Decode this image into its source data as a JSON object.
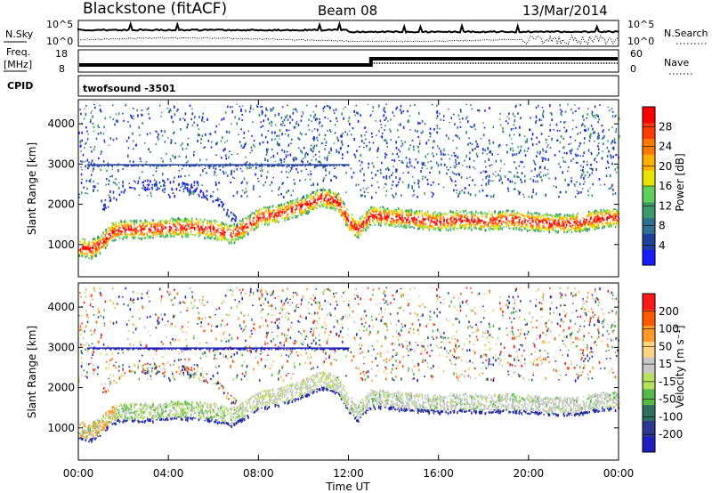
{
  "header": {
    "title": "Blackstone (fitACF)",
    "beam": "Beam 08",
    "date": "13/Mar/2014"
  },
  "noise_panel": {
    "left_label": "N.Sky",
    "right_label": "N.Search",
    "left_ticks": [
      "10^5",
      "10^0"
    ],
    "right_ticks": [
      "10^5",
      "10^0"
    ]
  },
  "freq_panel": {
    "left_label_line1": "Freq.",
    "left_label_line2": "[MHz]",
    "right_label": "Nave",
    "left_ticks": [
      "18",
      "8"
    ],
    "right_ticks": [
      "60",
      "0"
    ]
  },
  "cpid": {
    "label": "CPID",
    "value": "twofsound -3501"
  },
  "colors": {
    "power_scale": [
      "#1a1aff",
      "#1e3f9e",
      "#2f6f8f",
      "#3e9a6a",
      "#5fd15b",
      "#e6e600",
      "#ffb000",
      "#ff7a00",
      "#ff3c00",
      "#ff0000"
    ],
    "velocity_scale": [
      "#1f1fbf",
      "#2b3a8f",
      "#2f6f5f",
      "#58b84a",
      "#b8e060",
      "#c8c8c8",
      "#ffd27f",
      "#ff9a2a",
      "#ff5a00",
      "#ff1a1a"
    ]
  },
  "chart_data": [
    {
      "type": "heatmap",
      "name": "power",
      "xlabel": "",
      "ylabel": "Slant Range [km]",
      "xlim": [
        0,
        24
      ],
      "ylim": [
        200,
        4600
      ],
      "yticks": [
        1000,
        2000,
        3000,
        4000
      ],
      "colorbar": {
        "label": "Power [dB]",
        "ticks": [
          "28",
          "24",
          "20",
          "16",
          "12",
          "8",
          "4"
        ],
        "range": [
          0,
          32
        ]
      },
      "main_band": [
        [
          0.0,
          950
        ],
        [
          0.5,
          900
        ],
        [
          1.0,
          1050
        ],
        [
          1.5,
          1350
        ],
        [
          2.0,
          1400
        ],
        [
          3.0,
          1400
        ],
        [
          4.0,
          1450
        ],
        [
          5.0,
          1450
        ],
        [
          6.0,
          1400
        ],
        [
          6.8,
          1280
        ],
        [
          7.5,
          1500
        ],
        [
          8.0,
          1700
        ],
        [
          9.0,
          1800
        ],
        [
          10.0,
          2000
        ],
        [
          10.8,
          2200
        ],
        [
          11.5,
          2100
        ],
        [
          12.0,
          1600
        ],
        [
          12.4,
          1400
        ],
        [
          13.0,
          1750
        ],
        [
          14.0,
          1700
        ],
        [
          15.0,
          1650
        ],
        [
          16.0,
          1600
        ],
        [
          17.0,
          1650
        ],
        [
          18.0,
          1600
        ],
        [
          19.0,
          1650
        ],
        [
          20.0,
          1600
        ],
        [
          21.0,
          1550
        ],
        [
          22.0,
          1550
        ],
        [
          23.0,
          1650
        ],
        [
          24.0,
          1700
        ]
      ],
      "upper_band": [
        [
          1.2,
          2000
        ],
        [
          2.0,
          2450
        ],
        [
          3.0,
          2500
        ],
        [
          4.0,
          2500
        ],
        [
          5.0,
          2400
        ],
        [
          6.0,
          2200
        ],
        [
          7.0,
          1600
        ]
      ]
    },
    {
      "type": "heatmap",
      "name": "velocity",
      "xlabel": "Time UT",
      "ylabel": "Slant Range [km]",
      "xlim": [
        0,
        24
      ],
      "ylim": [
        200,
        4600
      ],
      "yticks": [
        1000,
        2000,
        3000,
        4000
      ],
      "xticks": [
        "00:00",
        "04:00",
        "08:00",
        "12:00",
        "16:00",
        "20:00",
        "00:00"
      ],
      "colorbar": {
        "label": "Velocity [m s⁻¹]",
        "ticks": [
          "200",
          "100",
          "50",
          "15",
          "-15",
          "-50",
          "-100",
          "-200"
        ],
        "range": [
          -250,
          250
        ]
      }
    }
  ]
}
